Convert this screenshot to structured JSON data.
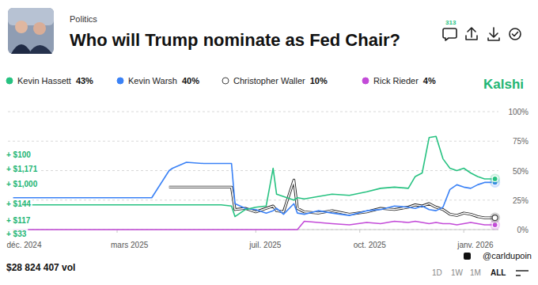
{
  "chart_data": {
    "type": "line",
    "title": "Who will Trump nominate as Fed Chair?",
    "subtitle": "Politics",
    "source": "Kalshi",
    "comment_count": 313,
    "volume": "$28 824 407 vol",
    "range_buttons": [
      "1D",
      "1W",
      "1M",
      "ALL"
    ],
    "credit": "@carldupoin",
    "annotations": [
      "+ $100",
      "+ $1,171",
      "+ $1,000",
      "+ $144",
      "+ $117",
      "+ $33"
    ],
    "legend": "top",
    "grid": true,
    "x": [
      0,
      1,
      2,
      3,
      4,
      4.5,
      4.6,
      5,
      5.5,
      6,
      6.3,
      6.4,
      6.7,
      7,
      7.3,
      7.5,
      7.6,
      7.8,
      8.1,
      8.2,
      8.4,
      8.8,
      9.2,
      9.7,
      10.2,
      10.6,
      11,
      11.4,
      11.6,
      11.8,
      12,
      12.2,
      12.4,
      12.6,
      12.8,
      13,
      13.2,
      13.4,
      13.6,
      13.9
    ],
    "xlim": [
      -0.15,
      14.0
    ],
    "xticks": [
      {
        "value": 0,
        "label": "déc. 2024"
      },
      {
        "value": 3,
        "label": "mars 2025"
      },
      {
        "value": 7,
        "label": "juil. 2025"
      },
      {
        "value": 10,
        "label": "oct. 2025"
      },
      {
        "value": 13,
        "label": "janv. 2026"
      }
    ],
    "ylim": [
      0,
      100
    ],
    "yticks": [
      {
        "value": 0,
        "label": "0%"
      },
      {
        "value": 25,
        "label": "25%"
      },
      {
        "value": 50,
        "label": "50%"
      },
      {
        "value": 75,
        "label": "75%"
      },
      {
        "value": 100,
        "label": "100%"
      }
    ],
    "series": [
      {
        "name": "Kevin Hassett",
        "color": "#27c281",
        "current": {
          "value": 43,
          "label": "43%"
        },
        "values": [
          21,
          21,
          21,
          21,
          21,
          21,
          21,
          21,
          21,
          21,
          20,
          11,
          17,
          19,
          20,
          52,
          30,
          28,
          25,
          27,
          26,
          28,
          30,
          29,
          32,
          35,
          36,
          35,
          45,
          48,
          78,
          79,
          60,
          52,
          50,
          52,
          48,
          45,
          43,
          43
        ]
      },
      {
        "name": "Kevin Warsh",
        "color": "#3b82f6",
        "current": {
          "value": 40,
          "label": "40%"
        },
        "values": [
          27,
          27,
          27,
          27,
          27,
          50,
          52,
          57,
          56,
          56,
          56,
          22,
          18,
          17,
          14,
          16,
          18,
          13,
          22,
          14,
          13,
          16,
          14,
          12,
          16,
          17,
          20,
          19,
          18,
          20,
          17,
          16,
          19,
          34,
          38,
          36,
          35,
          38,
          40,
          40
        ]
      },
      {
        "name": "Christopher Waller",
        "color": "#ffffff",
        "current": {
          "value": 10,
          "label": "10%"
        },
        "values": [
          null,
          null,
          null,
          null,
          null,
          36,
          36,
          36,
          36,
          36,
          36,
          17,
          18,
          15,
          18,
          20,
          16,
          15,
          42,
          18,
          15,
          14,
          16,
          13,
          15,
          18,
          17,
          19,
          21,
          20,
          22,
          19,
          17,
          13,
          12,
          14,
          13,
          11,
          10,
          10
        ]
      },
      {
        "name": "Rick Rieder",
        "color": "#c34bd8",
        "current": {
          "value": 4,
          "label": "4%"
        },
        "values": [
          0,
          0,
          0,
          0,
          0,
          0,
          0,
          0,
          0,
          0,
          0,
          0,
          0,
          0,
          0,
          0,
          0,
          0,
          0,
          0,
          7,
          6,
          5,
          4,
          6,
          5,
          7,
          6,
          7,
          6,
          5,
          6,
          5,
          5,
          4,
          5,
          6,
          5,
          4,
          4
        ]
      }
    ]
  }
}
